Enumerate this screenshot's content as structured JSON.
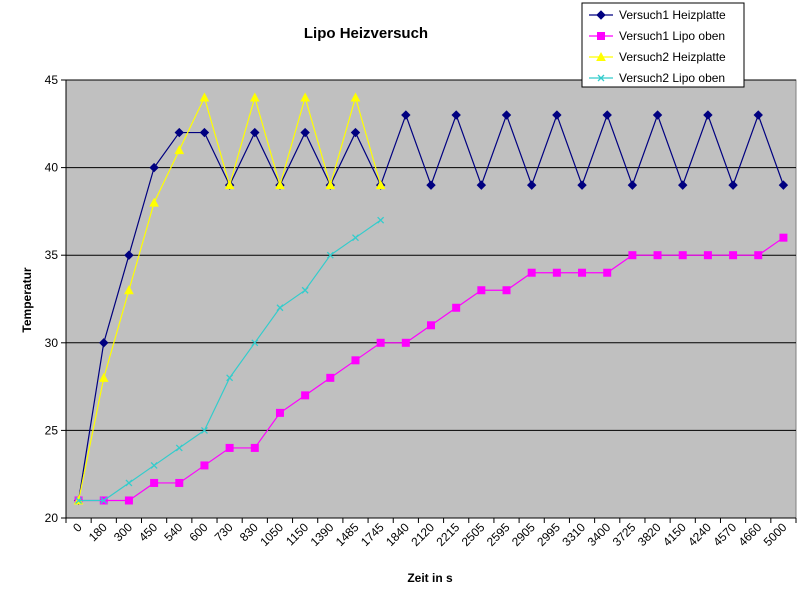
{
  "chart_data": {
    "type": "line",
    "title": "Lipo Heizversuch",
    "xlabel": "Zeit in s",
    "ylabel": "Temperatur",
    "ylim": [
      20,
      45
    ],
    "yticks": [
      20,
      25,
      30,
      35,
      40,
      45
    ],
    "grid": "horizontal",
    "legend_position": "top-right",
    "plot_background": "#c0c0c0",
    "categories": [
      "0",
      "180",
      "300",
      "450",
      "540",
      "600",
      "730",
      "830",
      "1050",
      "1150",
      "1390",
      "1485",
      "1745",
      "1840",
      "2120",
      "2215",
      "2505",
      "2595",
      "2905",
      "2995",
      "3310",
      "3400",
      "3725",
      "3820",
      "4150",
      "4240",
      "4570",
      "4660",
      "5000"
    ],
    "series": [
      {
        "name": "Versuch1 Heizplatte",
        "color": "#000080",
        "marker": "diamond",
        "values": [
          21,
          30,
          35,
          40,
          42,
          42,
          39,
          42,
          39,
          42,
          39,
          42,
          39,
          43,
          39,
          43,
          39,
          43,
          39,
          43,
          39,
          43,
          39,
          43,
          39,
          43,
          39,
          43,
          39
        ]
      },
      {
        "name": "Versuch1 Lipo oben",
        "color": "#ff00ff",
        "marker": "square",
        "values": [
          21,
          21,
          21,
          22,
          22,
          23,
          24,
          24,
          26,
          27,
          28,
          29,
          30,
          30,
          31,
          32,
          33,
          33,
          34,
          34,
          34,
          34,
          35,
          35,
          35,
          35,
          35,
          35,
          36
        ]
      },
      {
        "name": "Versuch2 Heizplatte",
        "color": "#ffff00",
        "marker": "triangle",
        "values": [
          21,
          28,
          33,
          38,
          41,
          44,
          39,
          44,
          39,
          44,
          39,
          44,
          39,
          null,
          null,
          null,
          null,
          null,
          null,
          null,
          null,
          null,
          null,
          null,
          null,
          null,
          null,
          null,
          null
        ]
      },
      {
        "name": "Versuch2 Lipo oben",
        "color": "#33cccc",
        "marker": "x",
        "values": [
          21,
          21,
          22,
          23,
          24,
          25,
          28,
          30,
          32,
          33,
          35,
          36,
          37,
          null,
          null,
          null,
          null,
          null,
          null,
          null,
          null,
          null,
          null,
          null,
          null,
          null,
          null,
          null,
          null
        ]
      }
    ]
  }
}
